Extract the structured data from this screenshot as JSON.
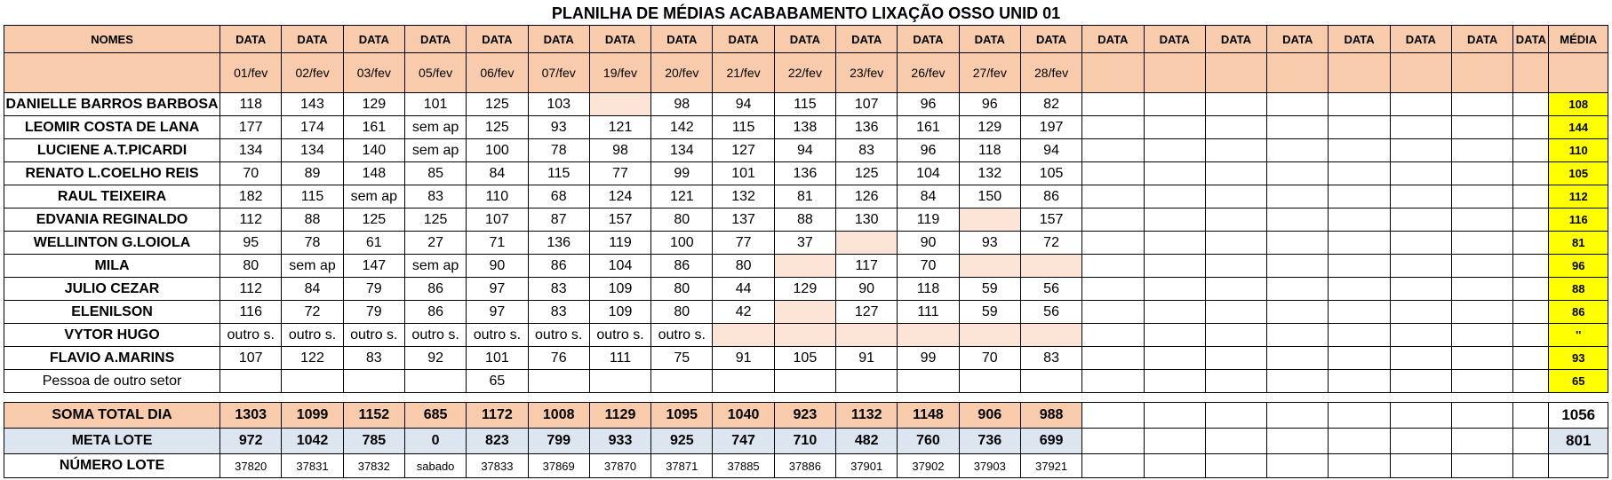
{
  "title": "PLANILHA DE MÉDIAS ACABABAMENTO LIXAÇÃO OSSO UNID 01",
  "header": {
    "names_label": "NOMES",
    "data_label": "DATA",
    "media_label": "MÉDIA",
    "dates": [
      "01/fev",
      "02/fev",
      "03/fev",
      "05/fev",
      "06/fev",
      "07/fev",
      "19/fev",
      "20/fev",
      "21/fev",
      "22/fev",
      "23/fev",
      "26/fev",
      "27/fev",
      "28/fev"
    ]
  },
  "rows": [
    {
      "name": "DANIELLE BARROS BARBOSA",
      "values": [
        "118",
        "143",
        "129",
        "101",
        "125",
        "103",
        "",
        "98",
        "94",
        "115",
        "107",
        "96",
        "96",
        "82"
      ],
      "avg": "108",
      "peach": [
        6
      ]
    },
    {
      "name": "LEOMIR COSTA DE LANA",
      "values": [
        "177",
        "174",
        "161",
        "sem ap",
        "125",
        "93",
        "121",
        "142",
        "115",
        "138",
        "136",
        "161",
        "129",
        "197"
      ],
      "avg": "144",
      "peach": []
    },
    {
      "name": "LUCIENE A.T.PICARDI",
      "values": [
        "134",
        "134",
        "140",
        "sem ap",
        "100",
        "78",
        "98",
        "134",
        "127",
        "94",
        "83",
        "96",
        "118",
        "94"
      ],
      "avg": "110",
      "peach": []
    },
    {
      "name": "RENATO L.COELHO REIS",
      "values": [
        "70",
        "89",
        "148",
        "85",
        "84",
        "115",
        "77",
        "99",
        "101",
        "136",
        "125",
        "104",
        "132",
        "105"
      ],
      "avg": "105",
      "peach": []
    },
    {
      "name": "RAUL TEIXEIRA",
      "values": [
        "182",
        "115",
        "sem ap",
        "83",
        "110",
        "68",
        "124",
        "121",
        "132",
        "81",
        "126",
        "84",
        "150",
        "86"
      ],
      "avg": "112",
      "peach": []
    },
    {
      "name": "EDVANIA REGINALDO",
      "values": [
        "112",
        "88",
        "125",
        "125",
        "107",
        "87",
        "157",
        "80",
        "137",
        "88",
        "130",
        "119",
        "",
        "157"
      ],
      "avg": "116",
      "peach": [
        12
      ]
    },
    {
      "name": "WELLINTON G.LOIOLA",
      "values": [
        "95",
        "78",
        "61",
        "27",
        "71",
        "136",
        "119",
        "100",
        "77",
        "37",
        "",
        "90",
        "93",
        "72"
      ],
      "avg": "81",
      "peach": [
        10
      ]
    },
    {
      "name": "MILA",
      "values": [
        "80",
        "sem ap",
        "147",
        "sem ap",
        "90",
        "86",
        "104",
        "86",
        "80",
        "",
        "117",
        "70",
        "",
        ""
      ],
      "avg": "96",
      "peach": [
        9,
        12,
        13
      ]
    },
    {
      "name": "JULIO CEZAR",
      "values": [
        "112",
        "84",
        "79",
        "86",
        "97",
        "83",
        "109",
        "80",
        "44",
        "129",
        "90",
        "118",
        "59",
        "56"
      ],
      "avg": "88",
      "peach": []
    },
    {
      "name": "ELENILSON",
      "values": [
        "116",
        "72",
        "79",
        "86",
        "97",
        "83",
        "109",
        "80",
        "42",
        "",
        "127",
        "111",
        "59",
        "56"
      ],
      "avg": "86",
      "peach": [
        9
      ]
    },
    {
      "name": "VYTOR HUGO",
      "values": [
        "outro s.",
        "outro s.",
        "outro s.",
        "outro s.",
        "outro s.",
        "outro s.",
        "outro s.",
        "outro s.",
        "",
        "",
        "",
        "",
        "",
        ""
      ],
      "avg": "''",
      "peach": [
        8,
        9,
        10,
        11,
        12,
        13
      ]
    },
    {
      "name": "FLAVIO A.MARINS",
      "values": [
        "107",
        "122",
        "83",
        "92",
        "101",
        "76",
        "111",
        "75",
        "91",
        "105",
        "91",
        "99",
        "70",
        "83"
      ],
      "avg": "93",
      "peach": []
    },
    {
      "name": "Pessoa de outro setor",
      "values": [
        "",
        "",
        "",
        "",
        "65",
        "",
        "",
        "",
        "",
        "",
        "",
        "",
        "",
        ""
      ],
      "avg": "65",
      "peach": [],
      "plain": true
    }
  ],
  "soma": {
    "label": "SOMA TOTAL DIA",
    "values": [
      "1303",
      "1099",
      "1152",
      "685",
      "1172",
      "1008",
      "1129",
      "1095",
      "1040",
      "923",
      "1132",
      "1148",
      "906",
      "988"
    ],
    "avg": "1056"
  },
  "meta": {
    "label": "META LOTE",
    "values": [
      "972",
      "1042",
      "785",
      "0",
      "823",
      "799",
      "933",
      "925",
      "747",
      "710",
      "482",
      "760",
      "736",
      "699"
    ],
    "avg": "801"
  },
  "lote": {
    "label": "NÚMERO LOTE",
    "values": [
      "37820",
      "37831",
      "37832",
      "sabado",
      "37833",
      "37869",
      "37870",
      "37871",
      "37885",
      "37886",
      "37901",
      "37902",
      "37903",
      "37921"
    ]
  },
  "colors": {
    "header_bg": "#f8cbad",
    "peach_cell": "#fce4d6",
    "average_bg": "#ffff00",
    "meta_bg": "#dde6f0"
  }
}
